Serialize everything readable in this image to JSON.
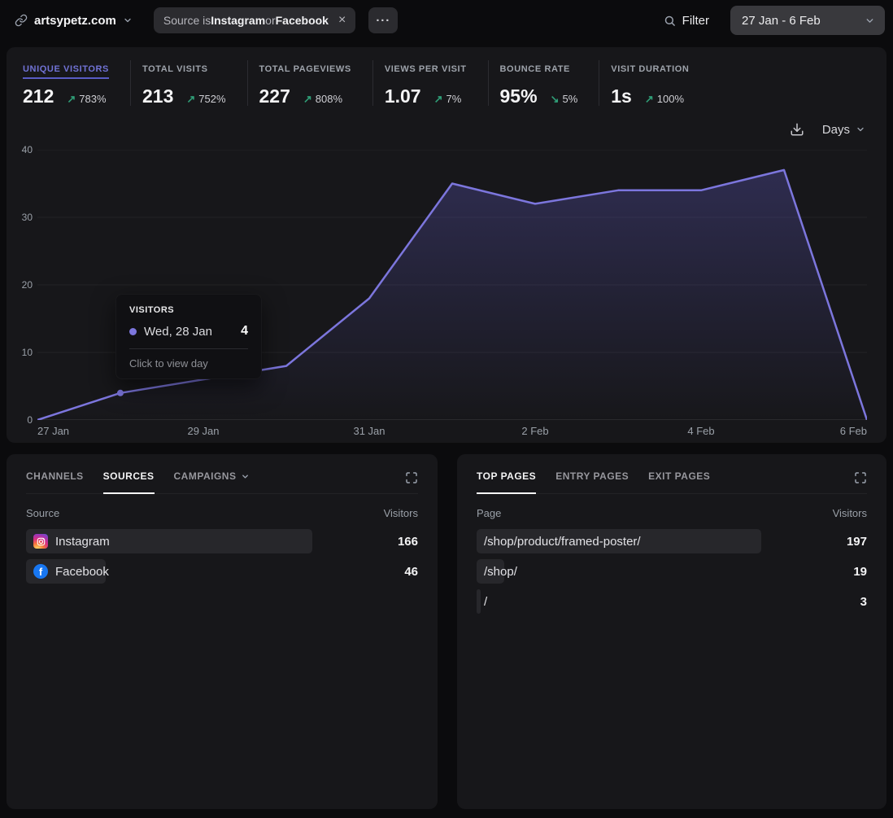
{
  "header": {
    "site": "artsypetz.com",
    "filter_chip": {
      "prefix": "Source is ",
      "source1": "Instagram",
      "conjunction": " or ",
      "source2": "Facebook",
      "close": "×"
    },
    "more_label": "···",
    "filter_label": "Filter",
    "date_range": "27 Jan - 6 Feb"
  },
  "icons": {
    "site": "link-icon",
    "site_dropdown": "chevron-down",
    "chip_close": "close-x",
    "more": "ellipsis",
    "filter": "magnifier",
    "date_dropdown": "chevron-down",
    "download": "download-tray",
    "interval_dropdown": "chevron-down",
    "expand": "fullscreen-corners",
    "campaigns_dropdown": "chevron-down",
    "up_arrow": "↗",
    "down_arrow": "↘"
  },
  "stats": [
    {
      "label": "UNIQUE VISITORS",
      "value": "212",
      "arrow": "↗",
      "change": "783%",
      "active": true
    },
    {
      "label": "TOTAL VISITS",
      "value": "213",
      "arrow": "↗",
      "change": "752%",
      "active": false
    },
    {
      "label": "TOTAL PAGEVIEWS",
      "value": "227",
      "arrow": "↗",
      "change": "808%",
      "active": false
    },
    {
      "label": "VIEWS PER VISIT",
      "value": "1.07",
      "arrow": "↗",
      "change": "7%",
      "active": false
    },
    {
      "label": "BOUNCE RATE",
      "value": "95%",
      "arrow": "↘",
      "change": "5%",
      "active": false
    },
    {
      "label": "VISIT DURATION",
      "value": "1s",
      "arrow": "↗",
      "change": "100%",
      "active": false
    }
  ],
  "chart_controls": {
    "interval": "Days"
  },
  "chart_data": {
    "type": "area",
    "title": "Visitors over time",
    "series_name": "Visitors",
    "x": [
      "27 Jan",
      "28 Jan",
      "29 Jan",
      "30 Jan",
      "31 Jan",
      "1 Feb",
      "2 Feb",
      "3 Feb",
      "4 Feb",
      "5 Feb",
      "6 Feb"
    ],
    "values": [
      0,
      4,
      6,
      8,
      18,
      35,
      32,
      34,
      34,
      37,
      0
    ],
    "ylim": [
      0,
      40
    ],
    "yticks": [
      0,
      10,
      20,
      30,
      40
    ],
    "xticks": [
      "27 Jan",
      "29 Jan",
      "31 Jan",
      "2 Feb",
      "4 Feb",
      "6 Feb"
    ],
    "grid": true,
    "legend": "none",
    "line_color": "#7c76dd",
    "highlight_index": 1
  },
  "tooltip": {
    "title": "VISITORS",
    "date": "Wed, 28 Jan",
    "value": "4",
    "hint": "Click to view day"
  },
  "sources_card": {
    "tabs": [
      {
        "label": "CHANNELS",
        "active": false
      },
      {
        "label": "SOURCES",
        "active": true
      },
      {
        "label": "CAMPAIGNS",
        "active": false,
        "has_dropdown": true
      }
    ],
    "col_left": "Source",
    "col_right": "Visitors",
    "rows": [
      {
        "name": "Instagram",
        "value": "166",
        "icon": "instagram",
        "bar_pct": 100
      },
      {
        "name": "Facebook",
        "value": "46",
        "icon": "facebook",
        "bar_pct": 27.7
      }
    ]
  },
  "pages_card": {
    "tabs": [
      {
        "label": "TOP PAGES",
        "active": true
      },
      {
        "label": "ENTRY PAGES",
        "active": false
      },
      {
        "label": "EXIT PAGES",
        "active": false
      }
    ],
    "col_left": "Page",
    "col_right": "Visitors",
    "rows": [
      {
        "name": "/shop/product/framed-poster/",
        "value": "197",
        "bar_pct": 100
      },
      {
        "name": "/shop/",
        "value": "19",
        "bar_pct": 9.6
      },
      {
        "name": "/",
        "value": "3",
        "bar_pct": 1.5
      }
    ]
  }
}
